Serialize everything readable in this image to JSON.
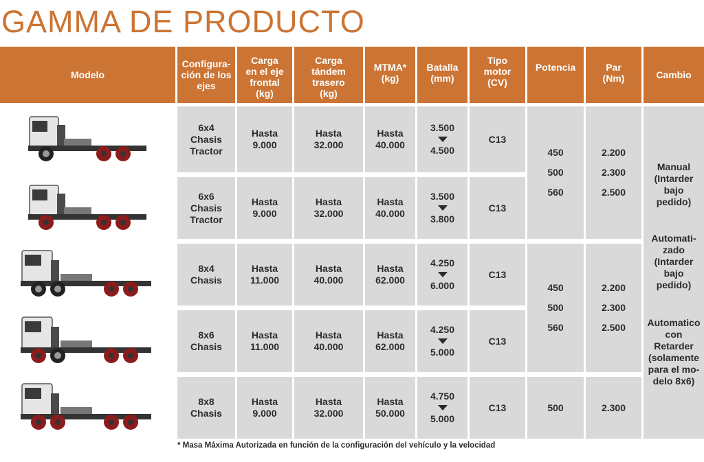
{
  "title": "GAMMA DE PRODUCTO",
  "headers": {
    "modelo": "Modelo",
    "config": "Configura-\nción de los\nejes",
    "carga_front": "Carga\nen el eje\nfrontal\n(kg)",
    "carga_tandem": "Carga\ntándem\ntrasero\n(kg)",
    "mtma": "MTMA*\n(kg)",
    "batalla": "Batalla\n(mm)",
    "tipo_motor": "Tipo\nmotor\n(CV)",
    "potencia": "Potencia",
    "par": "Par\n(Nm)",
    "cambio": "Cambio"
  },
  "rows": [
    {
      "config": "6x4\nChasis\nTractor",
      "carga_front": "Hasta\n9.000",
      "carga_tandem": "Hasta\n32.000",
      "mtma": "Hasta\n40.000",
      "batalla_min": "3.500",
      "batalla_max": "4.500",
      "motor": "C13",
      "truck_icon": "tractor-truck-6x4-image"
    },
    {
      "config": "6x6\nChasis\nTractor",
      "carga_front": "Hasta\n9.000",
      "carga_tandem": "Hasta\n32.000",
      "mtma": "Hasta\n40.000",
      "batalla_min": "3.500",
      "batalla_max": "3.800",
      "motor": "C13",
      "truck_icon": "tractor-truck-6x6-image"
    },
    {
      "config": "8x4\nChasis",
      "carga_front": "Hasta\n11.000",
      "carga_tandem": "Hasta\n40.000",
      "mtma": "Hasta\n62.000",
      "batalla_min": "4.250",
      "batalla_max": "6.000",
      "motor": "C13",
      "truck_icon": "chassis-truck-8x4-image"
    },
    {
      "config": "8x6\nChasis",
      "carga_front": "Hasta\n11.000",
      "carga_tandem": "Hasta\n40.000",
      "mtma": "Hasta\n62.000",
      "batalla_min": "4.250",
      "batalla_max": "5.000",
      "motor": "C13",
      "truck_icon": "chassis-truck-8x6-image"
    },
    {
      "config": "8x8\nChasis",
      "carga_front": "Hasta\n9.000",
      "carga_tandem": "Hasta\n32.000",
      "mtma": "Hasta\n50.000",
      "batalla_min": "4.750",
      "batalla_max": "5.000",
      "motor": "C13",
      "truck_icon": "chassis-truck-8x8-image"
    }
  ],
  "potencia_groups": [
    {
      "values": [
        "450",
        "500",
        "560"
      ]
    },
    {
      "values": [
        "450",
        "500",
        "560"
      ]
    },
    {
      "values": [
        "500"
      ]
    }
  ],
  "par_groups": [
    {
      "values": [
        "2.200",
        "2.300",
        "2.500"
      ]
    },
    {
      "values": [
        "2.200",
        "2.300",
        "2.500"
      ]
    },
    {
      "values": [
        "2.300"
      ]
    }
  ],
  "cambio": {
    "manual": "Manual\n(Intarder\nbajo\npedido)",
    "automatizado": "Automati-\nzado\n(Intarder\nbajo\npedido)",
    "automatico": "Automatico\ncon\nRetarder\n(solamente\npara el mo-\ndelo 8x6)"
  },
  "footnote": "* Masa Máxima Autorizada en función de la configuración del vehículo y la velocidad",
  "colors": {
    "header": "#cc7433",
    "cell": "#d9d9d9",
    "title": "#cc7433",
    "wheel": "#8c1c1c"
  }
}
